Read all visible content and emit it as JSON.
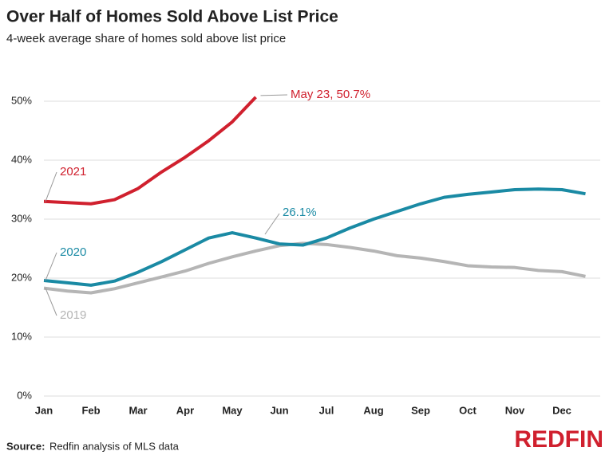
{
  "chart_data": {
    "type": "line",
    "title": "Over Half of Homes Sold Above List Price",
    "subtitle": "4-week average share of homes sold above list price",
    "categories": [
      "Jan",
      null,
      "Feb",
      null,
      "Mar",
      null,
      "Apr",
      null,
      "May",
      null,
      "Jun",
      null,
      "Jul",
      null,
      "Aug",
      null,
      "Sep",
      null,
      "Oct",
      null,
      "Nov",
      null,
      "Dec",
      null
    ],
    "series": [
      {
        "name": "2019",
        "color": "#b5b5b5",
        "values": [
          18.3,
          17.8,
          17.5,
          18.2,
          19.2,
          20.2,
          21.2,
          22.5,
          23.6,
          24.6,
          25.5,
          25.9,
          25.7,
          25.2,
          24.6,
          23.8,
          23.4,
          22.8,
          22.1,
          21.9,
          21.8,
          21.3,
          21.1,
          20.3
        ]
      },
      {
        "name": "2020",
        "color": "#1a8aa4",
        "values": [
          19.6,
          19.2,
          18.8,
          19.5,
          21.0,
          22.8,
          24.8,
          26.8,
          27.7,
          26.8,
          25.8,
          25.6,
          26.8,
          28.5,
          30.0,
          31.3,
          32.6,
          33.7,
          34.2,
          34.6,
          35.0,
          35.1,
          35.0,
          34.3
        ]
      },
      {
        "name": "2021",
        "color": "#d0202e",
        "values": [
          33.0,
          32.8,
          32.6,
          33.3,
          35.2,
          38.0,
          40.5,
          43.3,
          46.5,
          50.7,
          null,
          null,
          null,
          null,
          null,
          null,
          null,
          null,
          null,
          null,
          null,
          null,
          null,
          null
        ]
      }
    ],
    "ylim": [
      0,
      55
    ],
    "yticks": [
      {
        "value": 0,
        "label": "0%"
      },
      {
        "value": 10,
        "label": "10%"
      },
      {
        "value": 20,
        "label": "20%"
      },
      {
        "value": 30,
        "label": "30%"
      },
      {
        "value": 40,
        "label": "40%"
      },
      {
        "value": 50,
        "label": "50%"
      }
    ],
    "grid": true,
    "annotations": [
      "May 23, 50.7%",
      "26.1%"
    ],
    "source_label": "Source:",
    "source": "Redfin analysis of MLS data",
    "logo": "REDFIN"
  }
}
